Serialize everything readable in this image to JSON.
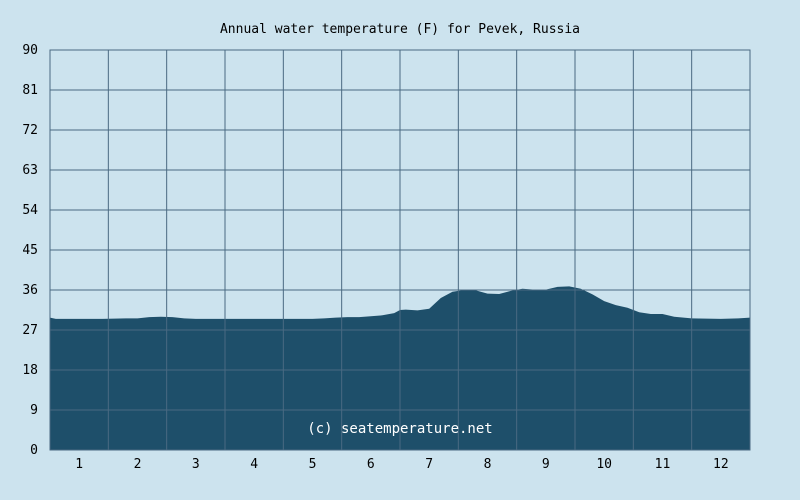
{
  "chart_data": {
    "type": "area",
    "title": "Annual water temperature (F) for Pevek, Russia",
    "watermark": "(c) seatemperature.net",
    "xlabel": "",
    "ylabel": "",
    "x_ticks": [
      "1",
      "2",
      "3",
      "4",
      "5",
      "6",
      "7",
      "8",
      "9",
      "10",
      "11",
      "12"
    ],
    "y_ticks": [
      "0",
      "9",
      "18",
      "27",
      "36",
      "45",
      "54",
      "63",
      "72",
      "81",
      "90"
    ],
    "ylim": [
      0,
      90
    ],
    "xlim": [
      0.5,
      12.5
    ],
    "grid": true,
    "x": [
      0.5,
      0.6,
      1.0,
      1.4,
      1.8,
      2.0,
      2.2,
      2.4,
      2.6,
      2.8,
      3.0,
      3.5,
      4.0,
      4.5,
      5.0,
      5.2,
      5.4,
      5.6,
      5.8,
      6.0,
      6.2,
      6.4,
      6.5,
      6.6,
      6.8,
      7.0,
      7.2,
      7.4,
      7.6,
      7.8,
      8.0,
      8.2,
      8.4,
      8.6,
      8.8,
      9.0,
      9.2,
      9.4,
      9.6,
      9.8,
      10.0,
      10.2,
      10.4,
      10.6,
      10.8,
      11.0,
      11.2,
      11.5,
      12.0,
      12.3,
      12.5
    ],
    "y": [
      29.8,
      29.5,
      29.5,
      29.5,
      29.6,
      29.6,
      29.9,
      30.0,
      29.9,
      29.6,
      29.5,
      29.5,
      29.5,
      29.5,
      29.5,
      29.6,
      29.8,
      29.9,
      29.9,
      30.1,
      30.3,
      30.8,
      31.5,
      31.6,
      31.4,
      31.8,
      34.2,
      35.6,
      36.0,
      35.9,
      35.2,
      35.1,
      35.8,
      36.3,
      36.1,
      36.1,
      36.7,
      36.8,
      36.3,
      35.0,
      33.5,
      32.6,
      32.0,
      31.0,
      30.6,
      30.6,
      30.0,
      29.6,
      29.5,
      29.6,
      29.8
    ],
    "colors": {
      "background": "#cce3ee",
      "fill": "#1e4f6a",
      "grid": "#4a6a82",
      "text": "#000000",
      "watermark": "#ffffff"
    }
  }
}
